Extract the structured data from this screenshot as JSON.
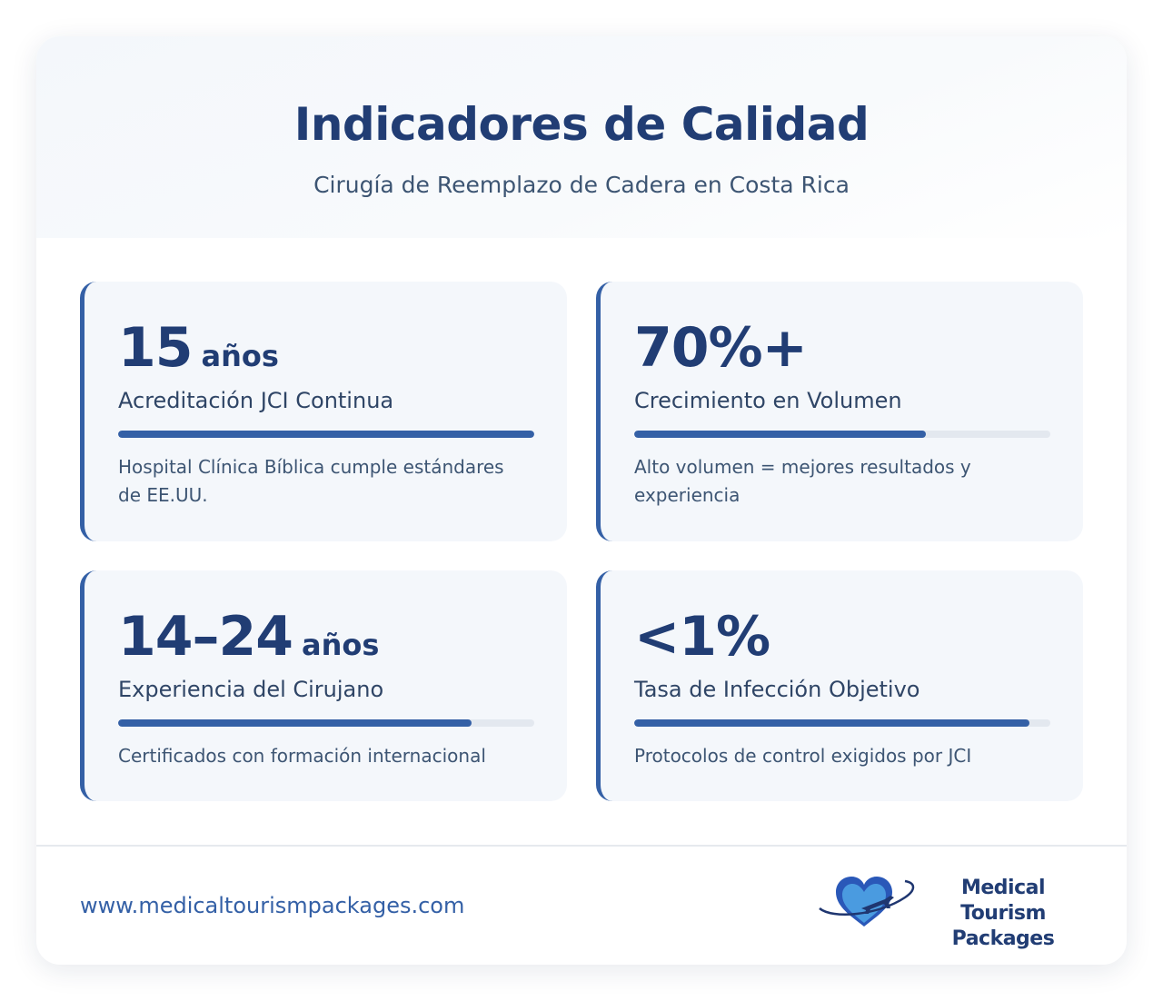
{
  "header": {
    "title": "Indicadores de Calidad",
    "subtitle": "Cirugía de Reemplazo de Cadera en Costa Rica"
  },
  "metrics": [
    {
      "value": "15",
      "unit": "años",
      "label": "Acreditación JCI Continua",
      "progress_percent": 100,
      "description": "Hospital Clínica Bíblica cumple estándares de EE.UU."
    },
    {
      "value": "70%+",
      "unit": "",
      "label": "Crecimiento en Volumen",
      "progress_percent": 70,
      "description": "Alto volumen = mejores resultados y experiencia"
    },
    {
      "value": "14–24",
      "unit": "años",
      "label": "Experiencia del Cirujano",
      "progress_percent": 85,
      "description": "Certificados con formación internacional"
    },
    {
      "value": "<1%",
      "unit": "",
      "label": "Tasa de Infección Objetivo",
      "progress_percent": 95,
      "description": "Protocolos de control exigidos por JCI"
    }
  ],
  "footer": {
    "url": "www.medicaltourismpackages.com",
    "logo_line1": "Medical Tourism",
    "logo_line2": "Packages"
  },
  "colors": {
    "primary": "#213d74",
    "accent": "#3460a6",
    "card_bg": "#f4f7fb",
    "logo_heart": "#3f8fd6"
  }
}
